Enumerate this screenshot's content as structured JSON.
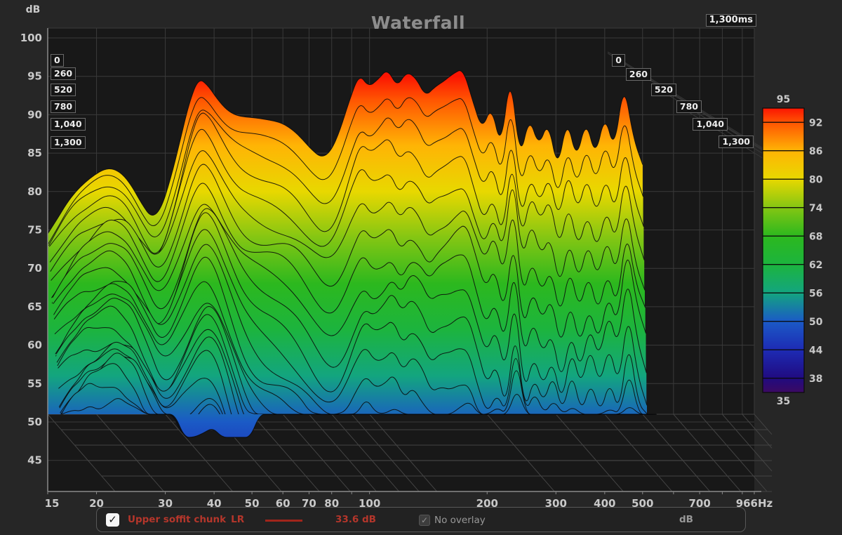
{
  "title": "Waterfall",
  "window_label": "1,300ms",
  "y_axis": {
    "unit": "dB",
    "ticks": [
      "100",
      "95",
      "90",
      "85",
      "80",
      "75",
      "70",
      "65",
      "60",
      "55",
      "50",
      "45"
    ],
    "tick_values": [
      100,
      95,
      90,
      85,
      80,
      75,
      70,
      65,
      60,
      55,
      50,
      45
    ]
  },
  "x_axis": {
    "unit": "Hz",
    "tick_labels": [
      "15",
      "20",
      "30",
      "40",
      "50",
      "60",
      "70",
      "80",
      "100",
      "200",
      "300",
      "400",
      "500",
      "700",
      "966Hz"
    ],
    "tick_freqs": [
      15,
      20,
      30,
      40,
      50,
      60,
      70,
      80,
      100,
      200,
      300,
      400,
      500,
      700,
      966
    ],
    "grid_freqs": [
      20,
      30,
      40,
      50,
      60,
      70,
      80,
      90,
      100,
      200,
      300,
      400,
      500,
      600,
      700,
      800,
      900,
      966
    ]
  },
  "time_axis": {
    "labels": [
      "0",
      "260",
      "520",
      "780",
      "1,040",
      "1,300"
    ],
    "values_ms": [
      0,
      260,
      520,
      780,
      1040,
      1300
    ]
  },
  "colorbar": {
    "top_label": "95",
    "bottom_label": "35",
    "side_labels": [
      "92",
      "86",
      "80",
      "74",
      "68",
      "62",
      "56",
      "50",
      "44",
      "38"
    ]
  },
  "legend": {
    "measurement_label": "Upper soffit chunk",
    "measurement_channel": "LR",
    "measurement_checked": true,
    "check_glyph": "✓",
    "value": "33.6 dB",
    "overlay_label": "No overlay",
    "overlay_checked": true,
    "unit": "dB",
    "accent_color": "#b5362b",
    "line_color": "#a1251b"
  },
  "chart_data": {
    "type": "area",
    "subtype": "waterfall_spectral_decay",
    "title": "Waterfall",
    "xlabel": "Hz",
    "ylabel": "dB",
    "zlabel": "ms",
    "xlim_hz": [
      15,
      966
    ],
    "ylim_db": [
      45,
      100
    ],
    "time_span_ms": 1300,
    "slice_count": 27,
    "time_step_ms": 50,
    "noise_floor_db": 51.0,
    "notch_band_hz": [
      30,
      46
    ],
    "notch_floor_db": 48.0,
    "grid": true,
    "freqs_hz": [
      15,
      15.9,
      16.8,
      17.7,
      18.7,
      19.8,
      20.9,
      22.1,
      23.4,
      24.7,
      26.1,
      27.6,
      29.2,
      30.9,
      32.7,
      34.5,
      36.5,
      38.6,
      40.8,
      43.1,
      45.6,
      48.2,
      51,
      53.9,
      57,
      60.2,
      63.7,
      67.3,
      71.2,
      75.3,
      79.6,
      84.1,
      89,
      94.1,
      99.5,
      105.2,
      111.2,
      117.6,
      124.3,
      131.4,
      139,
      146.9,
      155.3,
      164.2,
      173.6,
      183.6,
      194.1,
      205.2,
      217,
      229.4,
      242.5,
      256.4,
      271.1,
      286.6,
      303,
      320.4,
      338.7,
      358.1,
      378.6,
      400.3,
      423.2,
      447.5,
      473.1,
      500.2
    ],
    "spl_db_t0": [
      74.5,
      76.5,
      78.5,
      80,
      81.2,
      82.2,
      82.9,
      83,
      82.2,
      80.6,
      78.4,
      76.6,
      77.6,
      81.5,
      86.5,
      91.5,
      94.8,
      93.8,
      92,
      90.6,
      89.9,
      89.7,
      89.6,
      89.4,
      89.2,
      88.8,
      88,
      86.8,
      85.4,
      84.4,
      85.2,
      88,
      92,
      95.3,
      93.6,
      94.6,
      96,
      93.6,
      95.6,
      94.8,
      92.4,
      93.6,
      94.4,
      95.4,
      96,
      91.8,
      88,
      91.2,
      85.5,
      95.8,
      84,
      89.8,
      85.8,
      89.2,
      82.7,
      89.6,
      84,
      89.4,
      84.4,
      90.1,
      85.2,
      94.4,
      87,
      83.5
    ],
    "decay_db_per_slice": [
      1,
      1,
      1.05,
      1.05,
      1.1,
      1.1,
      1.1,
      1.15,
      1.15,
      1.2,
      1.2,
      1.25,
      1.3,
      1.4,
      1.55,
      1.7,
      1.82,
      1.85,
      1.95,
      2.1,
      2.3,
      2.45,
      2.55,
      2.6,
      2.65,
      2.7,
      2.75,
      2.8,
      2.85,
      2.9,
      3,
      3.1,
      3.2,
      3.3,
      3.3,
      3.35,
      3.35,
      3.4,
      3.4,
      3.45,
      3.5,
      3.5,
      3.55,
      3.55,
      3.6,
      3.6,
      3.65,
      3.6,
      3.65,
      3.5,
      3.7,
      3.7,
      3.75,
      3.75,
      3.8,
      3.8,
      3.85,
      3.85,
      3.9,
      3.85,
      3.9,
      3.7,
      3.85,
      3.9
    ],
    "color_stops": [
      {
        "db": 95,
        "color": "#fb1502"
      },
      {
        "db": 92,
        "color": "#ff5402"
      },
      {
        "db": 86,
        "color": "#ffb405"
      },
      {
        "db": 80,
        "color": "#e8d800"
      },
      {
        "db": 74,
        "color": "#84c613"
      },
      {
        "db": 68,
        "color": "#2cb81e"
      },
      {
        "db": 62,
        "color": "#1cb43e"
      },
      {
        "db": 56,
        "color": "#13a57f"
      },
      {
        "db": 50,
        "color": "#1b5ac6"
      },
      {
        "db": 44,
        "color": "#1d2bb4"
      },
      {
        "db": 38,
        "color": "#200b80"
      },
      {
        "db": 35,
        "color": "#3c0a62"
      }
    ]
  }
}
